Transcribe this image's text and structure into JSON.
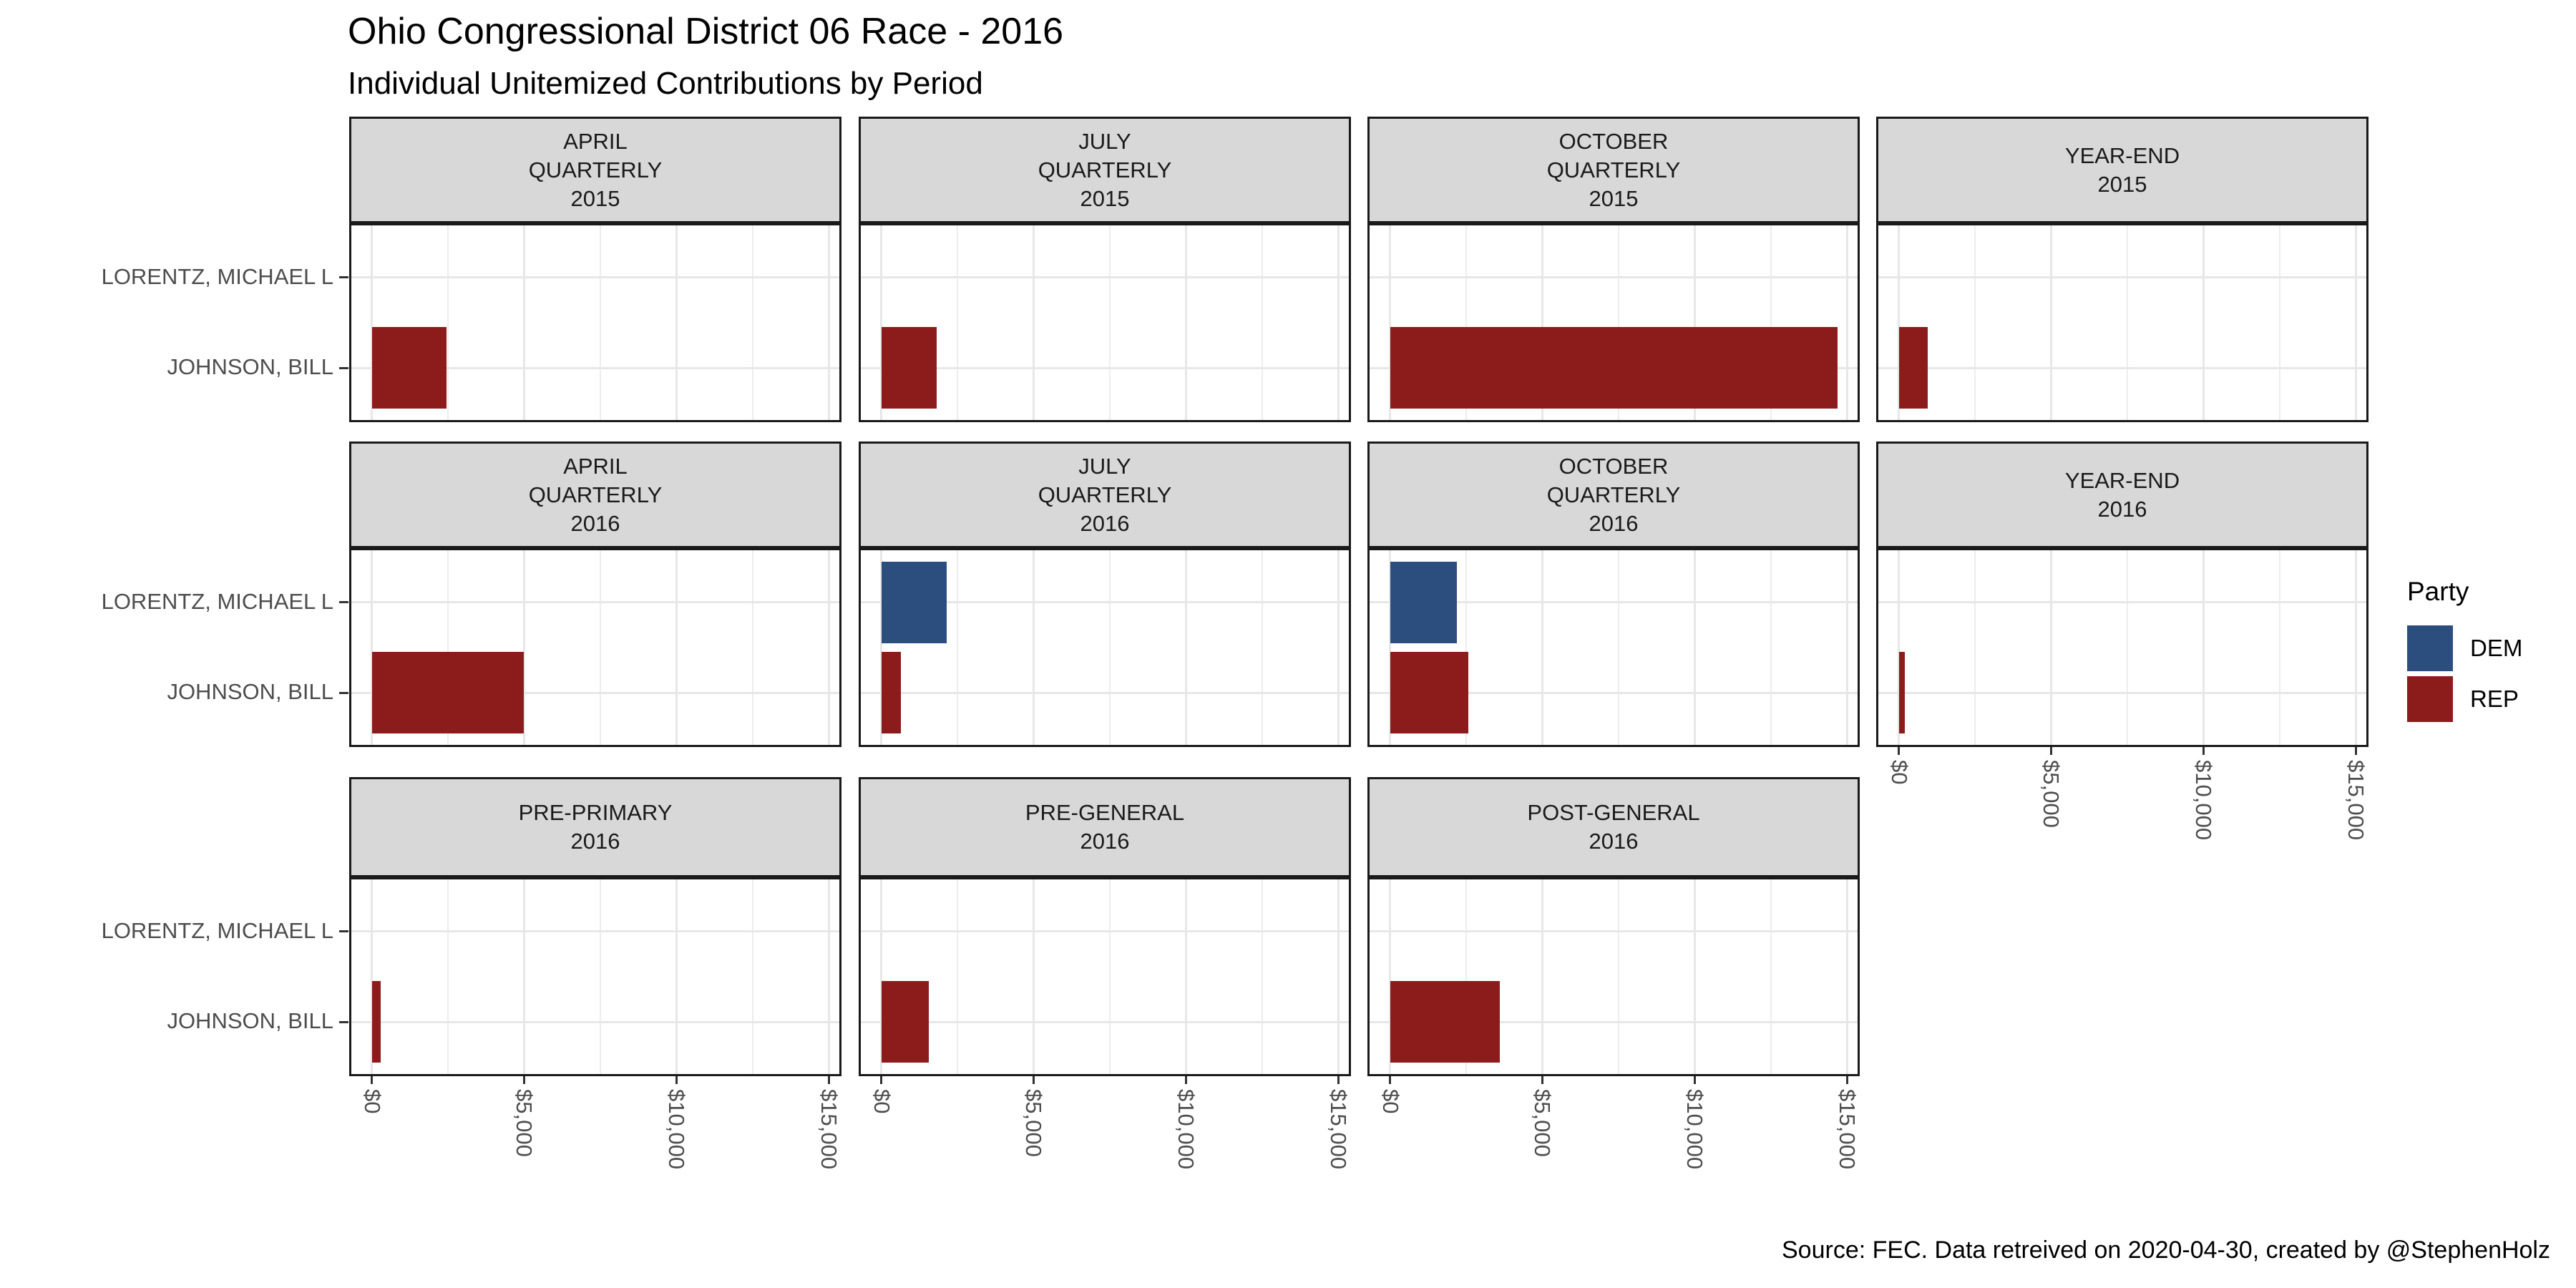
{
  "title": "Ohio Congressional District 06 Race - 2016",
  "subtitle": "Individual Unitemized Contributions by Period",
  "caption": "Source: FEC. Data retreived on 2020-04-30, created by @StephenHolz",
  "legend": {
    "title": "Party",
    "entries": [
      {
        "label": "DEM",
        "color": "#2C4E7E"
      },
      {
        "label": "REP",
        "color": "#8C1B1B"
      }
    ]
  },
  "chart_data": {
    "type": "bar",
    "orientation": "horizontal",
    "grid": true,
    "legend_position": "right",
    "categories": [
      "LORENTZ, MICHAEL L",
      "JOHNSON, BILL"
    ],
    "xlim": [
      0,
      15000
    ],
    "x_ticks": [
      {
        "label": "$0",
        "value": 0
      },
      {
        "label": "$5,000",
        "value": 5000
      },
      {
        "label": "$10,000",
        "value": 10000
      },
      {
        "label": "$15,000",
        "value": 15000
      }
    ],
    "facets": [
      {
        "label_lines": [
          "APRIL",
          "QUARTERLY",
          "2015"
        ],
        "bars": [
          {
            "candidate": "JOHNSON, BILL",
            "party": "REP",
            "value": 2450
          }
        ]
      },
      {
        "label_lines": [
          "JULY",
          "QUARTERLY",
          "2015"
        ],
        "bars": [
          {
            "candidate": "JOHNSON, BILL",
            "party": "REP",
            "value": 1830
          }
        ]
      },
      {
        "label_lines": [
          "OCTOBER",
          "QUARTERLY",
          "2015"
        ],
        "bars": [
          {
            "candidate": "JOHNSON, BILL",
            "party": "REP",
            "value": 14700
          }
        ]
      },
      {
        "label_lines": [
          "YEAR-END",
          "2015"
        ],
        "bars": [
          {
            "candidate": "JOHNSON, BILL",
            "party": "REP",
            "value": 950
          }
        ]
      },
      {
        "label_lines": [
          "APRIL",
          "QUARTERLY",
          "2016"
        ],
        "bars": [
          {
            "candidate": "JOHNSON, BILL",
            "party": "REP",
            "value": 5000
          }
        ]
      },
      {
        "label_lines": [
          "JULY",
          "QUARTERLY",
          "2016"
        ],
        "bars": [
          {
            "candidate": "LORENTZ, MICHAEL L",
            "party": "DEM",
            "value": 2150
          },
          {
            "candidate": "JOHNSON, BILL",
            "party": "REP",
            "value": 650
          }
        ]
      },
      {
        "label_lines": [
          "OCTOBER",
          "QUARTERLY",
          "2016"
        ],
        "bars": [
          {
            "candidate": "LORENTZ, MICHAEL L",
            "party": "DEM",
            "value": 2200
          },
          {
            "candidate": "JOHNSON, BILL",
            "party": "REP",
            "value": 2575
          }
        ]
      },
      {
        "label_lines": [
          "YEAR-END",
          "2016"
        ],
        "bars": [
          {
            "candidate": "JOHNSON, BILL",
            "party": "REP",
            "value": 200
          }
        ]
      },
      {
        "label_lines": [
          "PRE-PRIMARY",
          "2016"
        ],
        "bars": [
          {
            "candidate": "JOHNSON, BILL",
            "party": "REP",
            "value": 300
          }
        ]
      },
      {
        "label_lines": [
          "PRE-GENERAL",
          "2016"
        ],
        "bars": [
          {
            "candidate": "JOHNSON, BILL",
            "party": "REP",
            "value": 1550
          }
        ]
      },
      {
        "label_lines": [
          "POST-GENERAL",
          "2016"
        ],
        "bars": [
          {
            "candidate": "JOHNSON, BILL",
            "party": "REP",
            "value": 3600
          }
        ]
      }
    ]
  }
}
